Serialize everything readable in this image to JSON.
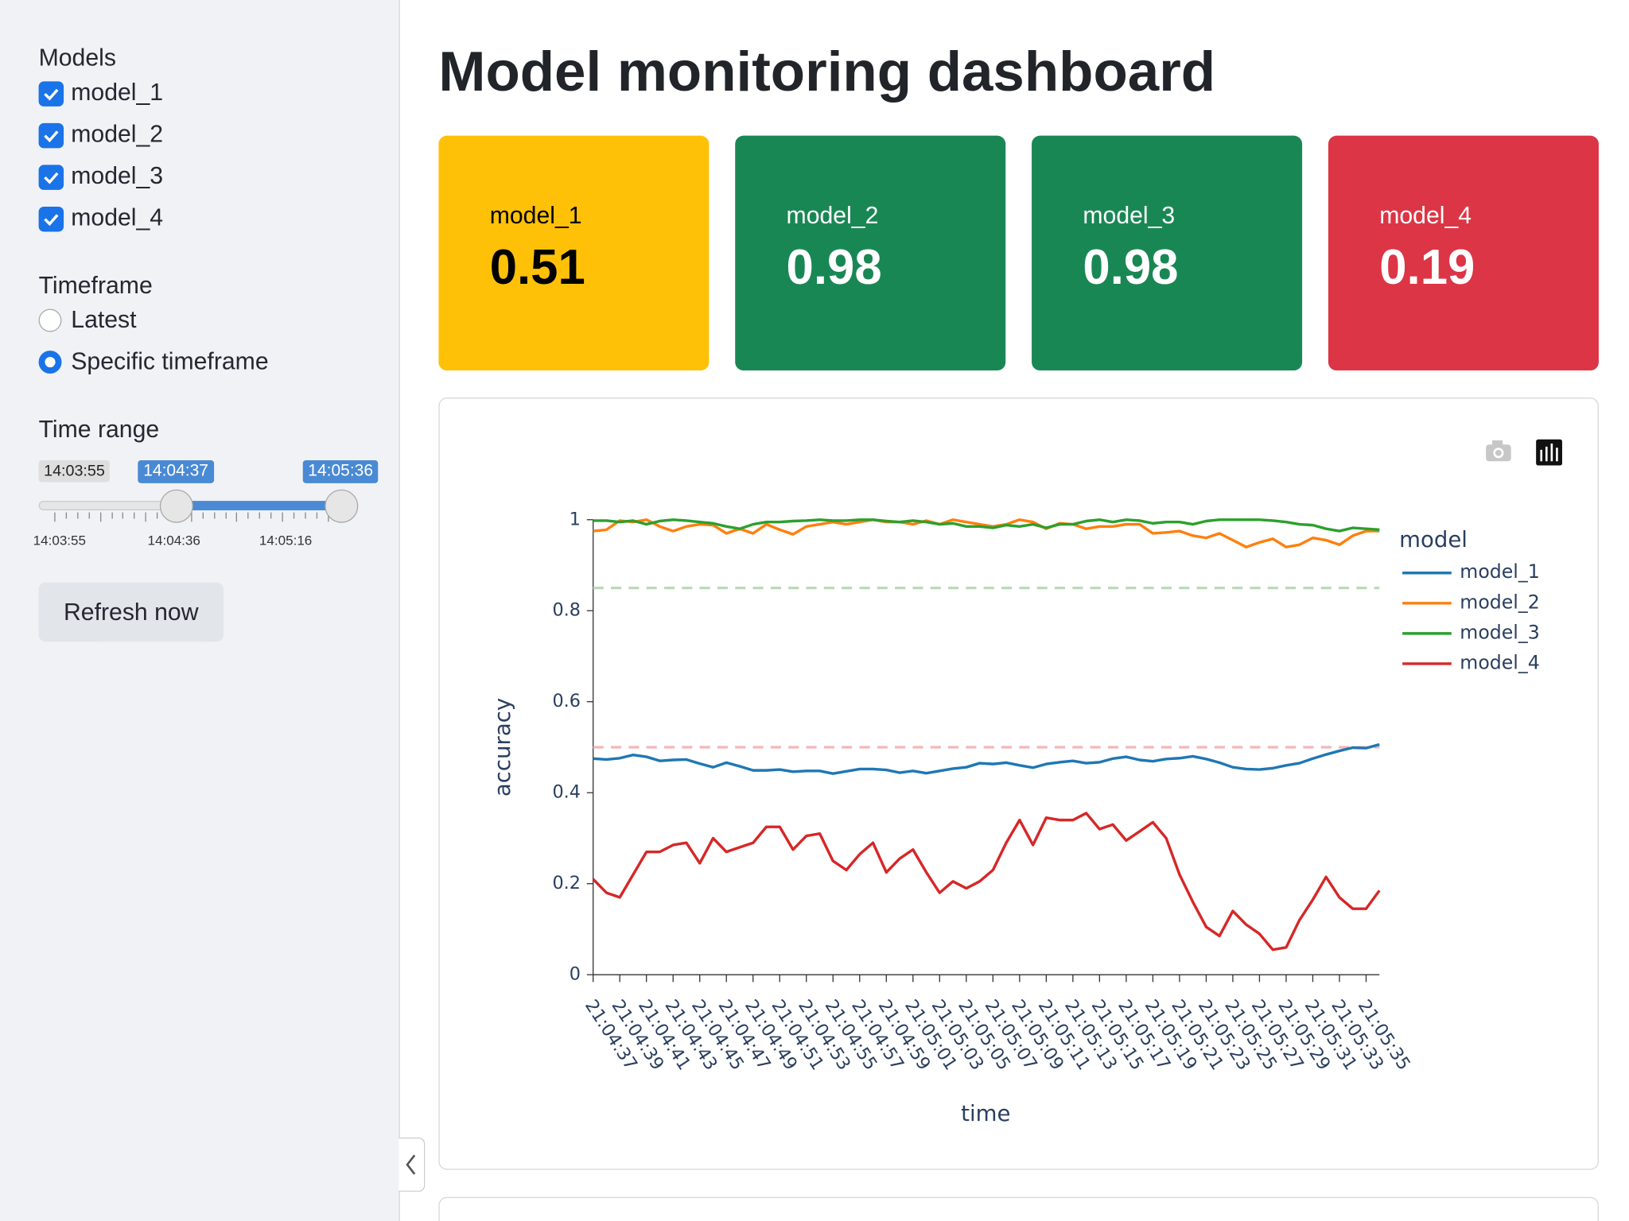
{
  "sidebar": {
    "models_label": "Models",
    "models": [
      {
        "label": "model_1",
        "checked": true
      },
      {
        "label": "model_2",
        "checked": true
      },
      {
        "label": "model_3",
        "checked": true
      },
      {
        "label": "model_4",
        "checked": true
      }
    ],
    "timeframe_label": "Timeframe",
    "timeframe_options": [
      {
        "label": "Latest",
        "selected": false
      },
      {
        "label": "Specific timeframe",
        "selected": true
      }
    ],
    "time_range_label": "Time range",
    "slider": {
      "min": "14:03:55",
      "value": [
        "14:04:37",
        "14:05:36"
      ],
      "ticks": [
        "14:03:55",
        "14:04:36",
        "14:05:16"
      ]
    },
    "refresh_button": "Refresh now"
  },
  "header": {
    "title": "Model monitoring dashboard"
  },
  "metrics": [
    {
      "label": "model_1",
      "value": 0.51,
      "color": "#ffc107",
      "text_color": "#000000"
    },
    {
      "label": "model_2",
      "value": 0.98,
      "color": "#198754",
      "text_color": "#ffffff"
    },
    {
      "label": "model_3",
      "value": 0.98,
      "color": "#198754",
      "text_color": "#ffffff"
    },
    {
      "label": "model_4",
      "value": 0.19,
      "color": "#dc3545",
      "text_color": "#ffffff"
    }
  ],
  "chart_data": {
    "type": "line",
    "x_label": "time",
    "y_label": "accuracy",
    "legend_title": "model",
    "grid": false,
    "x": [
      "21:04:37",
      "21:04:38",
      "21:04:39",
      "21:04:40",
      "21:04:41",
      "21:04:42",
      "21:04:43",
      "21:04:44",
      "21:04:45",
      "21:04:46",
      "21:04:47",
      "21:04:48",
      "21:04:49",
      "21:04:50",
      "21:04:51",
      "21:04:52",
      "21:04:53",
      "21:04:54",
      "21:04:55",
      "21:04:56",
      "21:04:57",
      "21:04:58",
      "21:04:59",
      "21:05:00",
      "21:05:01",
      "21:05:02",
      "21:05:03",
      "21:05:04",
      "21:05:05",
      "21:05:06",
      "21:05:07",
      "21:05:08",
      "21:05:09",
      "21:05:10",
      "21:05:11",
      "21:05:12",
      "21:05:13",
      "21:05:14",
      "21:05:15",
      "21:05:16",
      "21:05:17",
      "21:05:18",
      "21:05:19",
      "21:05:20",
      "21:05:21",
      "21:05:22",
      "21:05:23",
      "21:05:24",
      "21:05:25",
      "21:05:26",
      "21:05:27",
      "21:05:28",
      "21:05:29",
      "21:05:30",
      "21:05:31",
      "21:05:32",
      "21:05:33",
      "21:05:34",
      "21:05:35",
      "21:05:36"
    ],
    "xticks": [
      "21:04:37",
      "21:04:39",
      "21:04:41",
      "21:04:43",
      "21:04:45",
      "21:04:47",
      "21:04:49",
      "21:04:51",
      "21:04:53",
      "21:04:55",
      "21:04:57",
      "21:04:59",
      "21:05:01",
      "21:05:03",
      "21:05:05",
      "21:05:07",
      "21:05:09",
      "21:05:11",
      "21:05:13",
      "21:05:15",
      "21:05:17",
      "21:05:19",
      "21:05:21",
      "21:05:23",
      "21:05:25",
      "21:05:27",
      "21:05:29",
      "21:05:31",
      "21:05:33",
      "21:05:35"
    ],
    "ylim": [
      0,
      1
    ],
    "yticks": [
      0,
      0.2,
      0.4,
      0.6,
      0.8,
      1
    ],
    "thresholds": [
      {
        "value": 0.85,
        "color": "#b7dcb7"
      },
      {
        "value": 0.5,
        "color": "#f2b8b8"
      }
    ],
    "series": [
      {
        "name": "model_1",
        "color": "#1f77b4",
        "values": [
          0.475,
          0.473,
          0.476,
          0.483,
          0.479,
          0.47,
          0.472,
          0.473,
          0.464,
          0.456,
          0.466,
          0.458,
          0.449,
          0.449,
          0.451,
          0.446,
          0.448,
          0.448,
          0.442,
          0.447,
          0.452,
          0.452,
          0.45,
          0.444,
          0.448,
          0.443,
          0.448,
          0.453,
          0.456,
          0.465,
          0.463,
          0.466,
          0.46,
          0.455,
          0.463,
          0.467,
          0.47,
          0.465,
          0.467,
          0.475,
          0.479,
          0.472,
          0.469,
          0.474,
          0.476,
          0.48,
          0.474,
          0.466,
          0.456,
          0.452,
          0.451,
          0.454,
          0.46,
          0.465,
          0.475,
          0.484,
          0.492,
          0.499,
          0.498,
          0.506
        ]
      },
      {
        "name": "model_2",
        "color": "#ff7f0e",
        "values": [
          0.975,
          0.978,
          0.998,
          0.995,
          1.0,
          0.985,
          0.975,
          0.985,
          0.99,
          0.988,
          0.97,
          0.98,
          0.97,
          0.99,
          0.978,
          0.968,
          0.985,
          0.99,
          0.995,
          0.99,
          0.995,
          1.0,
          0.995,
          0.995,
          0.99,
          0.998,
          0.99,
          1.0,
          0.995,
          0.99,
          0.985,
          0.99,
          1.0,
          0.995,
          0.98,
          0.992,
          0.99,
          0.98,
          0.985,
          0.985,
          0.99,
          0.99,
          0.97,
          0.972,
          0.975,
          0.965,
          0.96,
          0.97,
          0.955,
          0.94,
          0.95,
          0.958,
          0.94,
          0.945,
          0.96,
          0.955,
          0.945,
          0.965,
          0.975,
          0.975
        ]
      },
      {
        "name": "model_3",
        "color": "#2ca02c",
        "values": [
          0.998,
          0.998,
          0.995,
          0.998,
          0.99,
          0.997,
          1.0,
          0.998,
          0.995,
          0.992,
          0.985,
          0.98,
          0.99,
          0.995,
          0.995,
          0.997,
          0.998,
          1.0,
          0.998,
          0.998,
          1.0,
          1.0,
          0.997,
          0.995,
          0.998,
          0.995,
          0.99,
          0.992,
          0.985,
          0.985,
          0.982,
          0.988,
          0.985,
          0.99,
          0.982,
          0.99,
          0.99,
          0.997,
          1.0,
          0.995,
          1.0,
          0.998,
          0.992,
          0.995,
          0.995,
          0.99,
          0.997,
          1.0,
          1.0,
          1.0,
          1.0,
          0.998,
          0.995,
          0.99,
          0.988,
          0.98,
          0.975,
          0.982,
          0.98,
          0.978
        ]
      },
      {
        "name": "model_4",
        "color": "#d62728",
        "values": [
          0.21,
          0.18,
          0.17,
          0.22,
          0.27,
          0.27,
          0.285,
          0.29,
          0.245,
          0.3,
          0.27,
          0.28,
          0.29,
          0.325,
          0.325,
          0.275,
          0.305,
          0.31,
          0.25,
          0.23,
          0.265,
          0.29,
          0.225,
          0.255,
          0.275,
          0.225,
          0.18,
          0.205,
          0.19,
          0.205,
          0.23,
          0.29,
          0.34,
          0.285,
          0.345,
          0.34,
          0.34,
          0.355,
          0.32,
          0.33,
          0.295,
          0.315,
          0.335,
          0.3,
          0.22,
          0.16,
          0.105,
          0.085,
          0.14,
          0.11,
          0.09,
          0.055,
          0.06,
          0.12,
          0.165,
          0.215,
          0.17,
          0.145,
          0.145,
          0.185
        ]
      }
    ]
  }
}
